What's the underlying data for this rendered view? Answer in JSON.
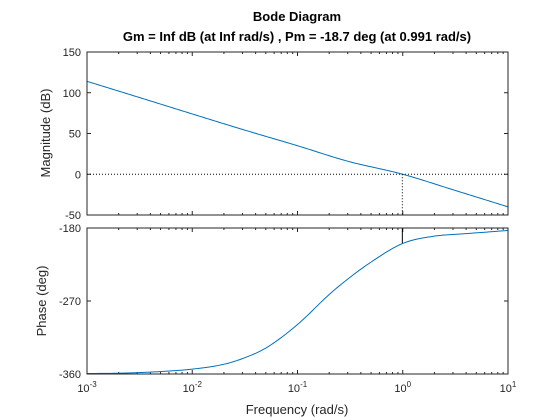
{
  "chart_data": {
    "type": "line",
    "title": "Bode Diagram",
    "subtitle": "Gm = Inf dB (at Inf rad/s) ,  Pm = -18.7 deg (at 0.991 rad/s)",
    "xlabel": "Frequency  (rad/s)",
    "x_scale": "log",
    "xlim": [
      0.001,
      10
    ],
    "x_ticks": [
      {
        "base": "10",
        "exp": "-3",
        "value": 0.001
      },
      {
        "base": "10",
        "exp": "-2",
        "value": 0.01
      },
      {
        "base": "10",
        "exp": "-1",
        "value": 0.1
      },
      {
        "base": "10",
        "exp": "0",
        "value": 1
      },
      {
        "base": "10",
        "exp": "1",
        "value": 10
      }
    ],
    "line_color": "#0072bd",
    "crossover_frequency": 0.991,
    "panels": [
      {
        "name": "magnitude",
        "ylabel": "Magnitude (dB)",
        "ylim": [
          -50,
          150
        ],
        "y_ticks": [
          "150",
          "100",
          "50",
          "0",
          "-50"
        ],
        "y_tick_values": [
          150,
          100,
          50,
          0,
          -50
        ],
        "reference_line": 0,
        "x": [
          0.001,
          0.003,
          0.01,
          0.03,
          0.1,
          0.3,
          1,
          3,
          10
        ],
        "y": [
          114,
          95,
          74,
          55,
          35,
          16,
          0,
          -19,
          -40
        ]
      },
      {
        "name": "phase",
        "ylabel": "Phase (deg)",
        "ylim": [
          -360,
          -180
        ],
        "y_ticks": [
          "-180",
          "-270",
          "-360"
        ],
        "y_tick_values": [
          -180,
          -270,
          -360
        ],
        "reference_line": -180,
        "phase_margin": -18.7,
        "x": [
          0.001,
          0.002,
          0.005,
          0.01,
          0.02,
          0.03,
          0.05,
          0.1,
          0.2,
          0.3,
          0.5,
          1,
          2,
          3,
          5,
          10
        ],
        "y": [
          -359.4,
          -359,
          -357,
          -354,
          -348,
          -341,
          -328,
          -299,
          -262,
          -243,
          -222,
          -199,
          -190,
          -188,
          -186,
          -183
        ]
      }
    ]
  }
}
